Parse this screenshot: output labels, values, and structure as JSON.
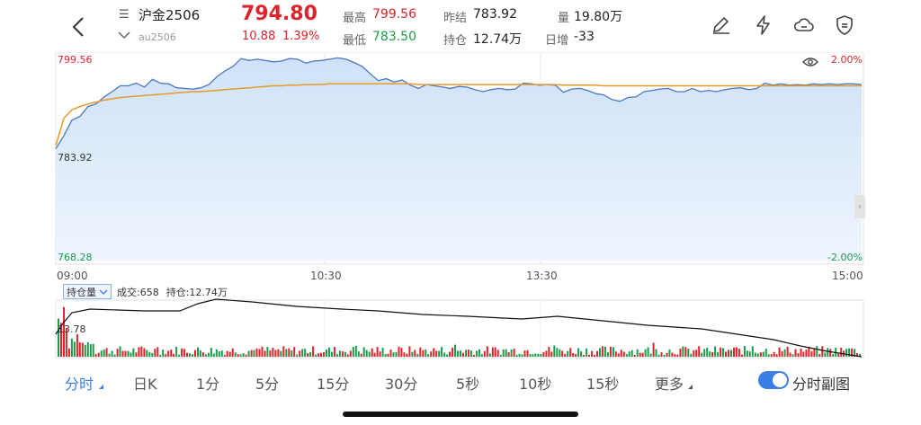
{
  "header": {
    "menu_glyph": "☰",
    "symbol_name": "沪金2506",
    "symbol_code": "au2506",
    "price": "794.80",
    "change": "10.88",
    "change_pct": "1.39%",
    "stats": {
      "high_label": "最高",
      "high_value": "799.56",
      "low_label": "最低",
      "low_value": "783.50",
      "prev_settle_label": "昨结",
      "prev_settle_value": "783.92",
      "open_interest_label": "持仓",
      "open_interest_value": "12.74万",
      "volume_label": "量",
      "volume_value": "19.80万",
      "daily_inc_label": "日增",
      "daily_inc_value": "-33"
    },
    "icons": [
      "back-icon",
      "menu-icon",
      "chevron-down-icon",
      "edit-icon",
      "lightning-icon",
      "cloud-icon",
      "shield-icon"
    ]
  },
  "chart_data": {
    "type": "line",
    "y_labels": {
      "top": "799.56",
      "mid": "783.92",
      "bottom": "768.28"
    },
    "pct_labels": {
      "top": "2.00%",
      "bottom": "-2.00%"
    },
    "x_ticks": [
      "09:00",
      "10:30",
      "13:30",
      "15:00"
    ],
    "ylim": [
      768.28,
      799.56
    ],
    "series": [
      {
        "name": "price",
        "color": "#4a78c2",
        "values": [
          785.5,
          787.5,
          789.9,
          790.5,
          792.0,
          792.4,
          793.5,
          794.3,
          795.2,
          795.2,
          795.6,
          795.0,
          796.2,
          795.6,
          795.5,
          794.9,
          794.8,
          794.7,
          794.9,
          795.4,
          796.6,
          797.5,
          798.2,
          799.4,
          799.1,
          799.3,
          799.1,
          798.9,
          799.0,
          799.4,
          799.3,
          798.7,
          799.0,
          799.1,
          799.3,
          799.5,
          799.3,
          798.8,
          798.2,
          797.1,
          796.0,
          796.3,
          795.8,
          796.1,
          795.3,
          794.8,
          795.4,
          795.2,
          795.0,
          794.8,
          795.1,
          795.0,
          794.6,
          794.3,
          794.6,
          794.8,
          794.6,
          794.7,
          795.6,
          795.5,
          795.3,
          795.4,
          795.3,
          794.2,
          794.7,
          794.8,
          794.5,
          794.0,
          793.8,
          793.1,
          792.8,
          793.4,
          793.5,
          794.3,
          794.5,
          794.7,
          794.8,
          794.3,
          794.3,
          794.8,
          794.3,
          794.5,
          794.3,
          794.6,
          794.8,
          794.9,
          794.6,
          794.8,
          795.6,
          795.3,
          795.5,
          795.3,
          795.4,
          795.3,
          795.5,
          795.4,
          795.5,
          795.4,
          795.5,
          795.5,
          795.4
        ]
      },
      {
        "name": "avg",
        "color": "#e89a2a",
        "values": [
          786.0,
          790.2,
          791.5,
          792.0,
          792.4,
          792.7,
          793.0,
          793.2,
          793.4,
          793.5,
          793.6,
          793.7,
          793.8,
          793.9,
          794.0,
          794.1,
          794.2,
          794.3,
          794.3,
          794.4,
          794.5,
          794.6,
          794.7,
          794.8,
          794.9,
          795.0,
          795.1,
          795.2,
          795.2,
          795.3,
          795.3,
          795.4,
          795.4,
          795.4,
          795.5,
          795.5,
          795.5,
          795.5,
          795.5,
          795.5,
          795.5,
          795.5,
          795.5,
          795.5,
          795.5,
          795.4,
          795.4,
          795.4,
          795.4,
          795.4,
          795.4,
          795.4,
          795.4,
          795.4,
          795.4,
          795.4,
          795.4,
          795.4,
          795.4,
          795.4,
          795.4,
          795.4,
          795.4,
          795.3,
          795.3,
          795.3,
          795.3,
          795.3,
          795.2,
          795.2,
          795.2,
          795.2,
          795.2,
          795.2,
          795.2,
          795.2,
          795.2,
          795.2,
          795.2,
          795.2,
          795.2,
          795.2,
          795.2,
          795.2,
          795.2,
          795.2,
          795.2,
          795.2,
          795.2,
          795.2,
          795.2,
          795.2,
          795.2,
          795.2,
          795.2,
          795.2,
          795.2,
          795.2,
          795.2,
          795.2,
          795.2
        ]
      }
    ]
  },
  "sub_chart": {
    "selector_label": "持仓量",
    "volume_label": "成交:658",
    "oi_label": "持仓:12.74万",
    "left_value": "13.78"
  },
  "tabs": {
    "items": [
      "分时",
      "日K",
      "1分",
      "5分",
      "15分",
      "30分",
      "5秒",
      "10秒",
      "15秒",
      "更多"
    ],
    "active_index": 0,
    "toggle_label": "分时副图",
    "toggle_on": true
  },
  "colors": {
    "up": "#e0232a",
    "down": "#1a9c4a",
    "accent": "#3b7ee6"
  }
}
